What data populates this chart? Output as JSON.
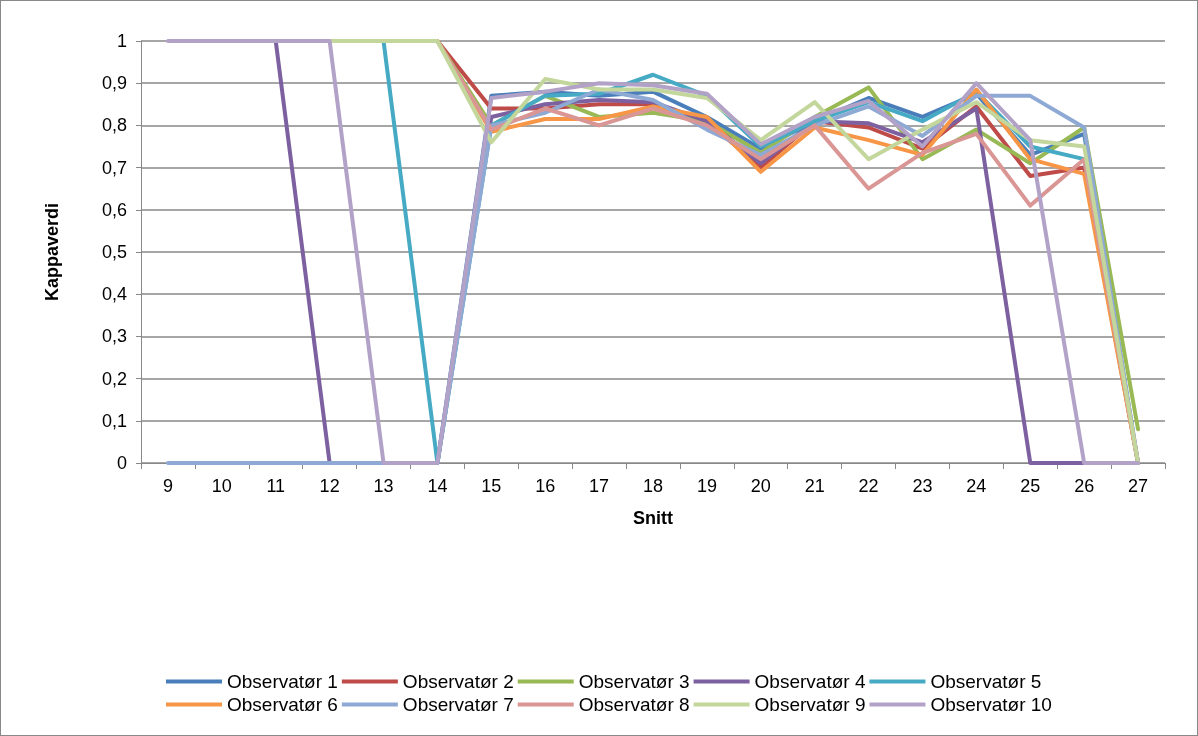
{
  "chart_data": {
    "type": "line",
    "xlabel": "Snitt",
    "ylabel": "Kappaverdi",
    "categories": [
      "9",
      "10",
      "11",
      "12",
      "13",
      "14",
      "15",
      "16",
      "17",
      "18",
      "19",
      "20",
      "21",
      "22",
      "23",
      "24",
      "25",
      "26",
      "27"
    ],
    "series": [
      {
        "name": "Observatør 1",
        "color": "#4a7ebb",
        "values": [
          null,
          null,
          null,
          null,
          null,
          0,
          0.87,
          0.88,
          0.87,
          0.88,
          0.82,
          0.745,
          0.81,
          0.865,
          0.82,
          0.875,
          0.73,
          0.78,
          0
        ]
      },
      {
        "name": "Observatør 2",
        "color": "#be4b48",
        "values": [
          null,
          null,
          null,
          null,
          null,
          1,
          0.84,
          0.84,
          0.85,
          0.85,
          0.81,
          0.7,
          0.81,
          0.795,
          0.745,
          0.845,
          0.68,
          0.7,
          0
        ]
      },
      {
        "name": "Observatør 3",
        "color": "#98b954",
        "values": [
          null,
          null,
          null,
          null,
          null,
          1,
          0.8,
          0.87,
          0.82,
          0.83,
          0.81,
          0.735,
          0.82,
          0.89,
          0.72,
          0.79,
          0.71,
          0.795,
          0.08
        ]
      },
      {
        "name": "Observatør 4",
        "color": "#7d60a0",
        "values": [
          null,
          null,
          1,
          0,
          0,
          0,
          0.82,
          0.85,
          0.86,
          0.855,
          0.81,
          0.71,
          0.81,
          0.805,
          0.76,
          0.84,
          0,
          0,
          0
        ]
      },
      {
        "name": "Observatør 5",
        "color": "#46aac5",
        "values": [
          null,
          null,
          null,
          null,
          1,
          0,
          0.8,
          0.87,
          0.875,
          0.92,
          0.87,
          0.75,
          0.81,
          0.855,
          0.81,
          0.88,
          0.75,
          0.72,
          0
        ]
      },
      {
        "name": "Observatør 6",
        "color": "#f79646",
        "values": [
          null,
          null,
          null,
          null,
          null,
          1,
          0.785,
          0.815,
          0.815,
          0.845,
          0.82,
          0.69,
          0.795,
          0.765,
          0.73,
          0.885,
          0.72,
          0.685,
          0
        ]
      },
      {
        "name": "Observatør 7",
        "color": "#8ea9d4",
        "values": [
          0,
          0,
          0,
          0,
          0,
          0,
          0.8,
          0.83,
          0.885,
          0.86,
          0.79,
          0.73,
          0.8,
          0.845,
          0.775,
          0.87,
          0.87,
          0.795,
          0
        ]
      },
      {
        "name": "Observatør 8",
        "color": "#d99694",
        "values": [
          null,
          null,
          null,
          null,
          null,
          1,
          0.79,
          0.84,
          0.8,
          0.84,
          0.8,
          0.72,
          0.8,
          0.65,
          0.735,
          0.78,
          0.61,
          0.72,
          0
        ]
      },
      {
        "name": "Observatør 9",
        "color": "#c3d69b",
        "values": [
          null,
          null,
          null,
          1,
          1,
          1,
          0.76,
          0.91,
          0.885,
          0.885,
          0.865,
          0.765,
          0.855,
          0.72,
          0.79,
          0.855,
          0.765,
          0.75,
          0
        ]
      },
      {
        "name": "Observatør 10",
        "color": "#b3a2c7",
        "values": [
          1,
          1,
          1,
          1,
          0,
          0,
          0.865,
          0.88,
          0.9,
          0.895,
          0.875,
          0.755,
          0.82,
          0.858,
          0.75,
          0.9,
          0.765,
          0,
          0
        ]
      }
    ],
    "ylim": [
      0,
      1
    ],
    "yticks": [
      0,
      {
        "value": 0.1,
        "label": "0,1"
      },
      {
        "value": 0.2,
        "label": "0,2"
      },
      {
        "value": 0.3,
        "label": "0,3"
      },
      {
        "value": 0.4,
        "label": "0,4"
      },
      {
        "value": 0.5,
        "label": "0,5"
      },
      {
        "value": 0.6,
        "label": "0,6"
      },
      {
        "value": 0.7,
        "label": "0,7"
      },
      {
        "value": 0.8,
        "label": "0,8"
      },
      {
        "value": 0.9,
        "label": "0,9"
      },
      1
    ],
    "grid": "y",
    "legend": "bottom",
    "marker": "none",
    "line_style": "solid"
  }
}
